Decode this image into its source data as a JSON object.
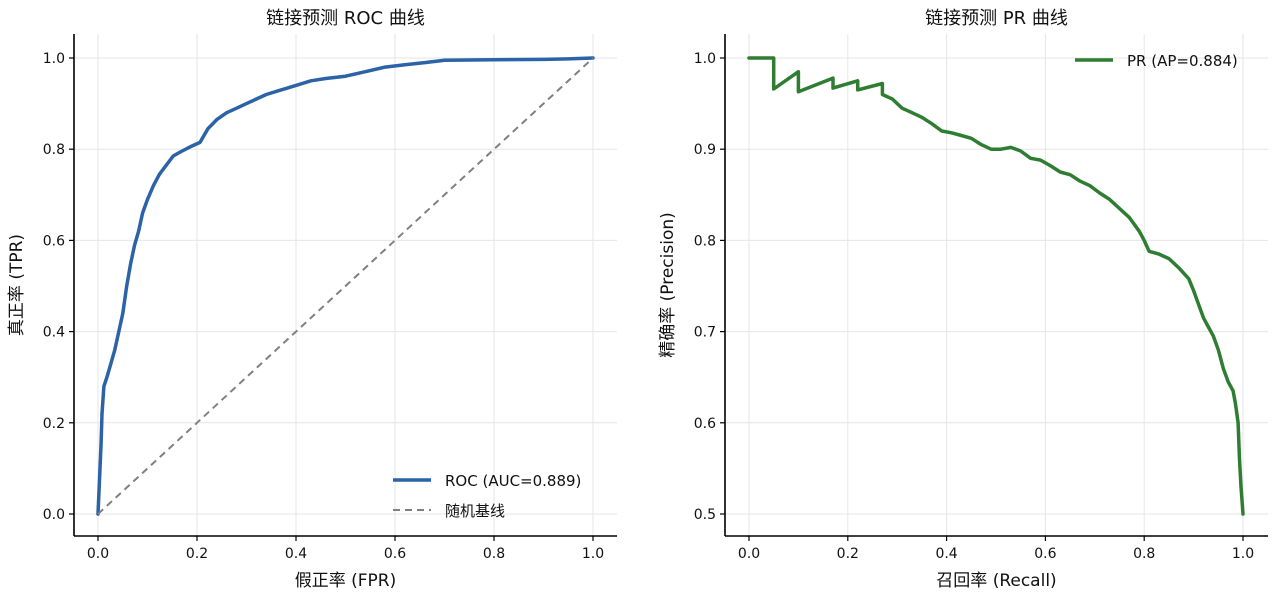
{
  "chart_data": [
    {
      "type": "line",
      "title": "链接预测 ROC 曲线",
      "xlabel": "假正率 (FPR)",
      "ylabel": "真正率 (TPR)",
      "xlim": [
        0.0,
        1.0
      ],
      "ylim": [
        0.0,
        1.0
      ],
      "xticks": [
        "0.0",
        "0.2",
        "0.4",
        "0.6",
        "0.8",
        "1.0"
      ],
      "yticks": [
        "0.0",
        "0.2",
        "0.4",
        "0.6",
        "0.8",
        "1.0"
      ],
      "grid": true,
      "legend": "lower-right",
      "series": [
        {
          "name": "ROC (AUC=0.889)",
          "color": "#2b63a6",
          "style": "solid",
          "x": [
            0.0,
            0.002,
            0.004,
            0.006,
            0.008,
            0.012,
            0.018,
            0.026,
            0.034,
            0.042,
            0.05,
            0.058,
            0.066,
            0.074,
            0.082,
            0.09,
            0.1,
            0.112,
            0.124,
            0.138,
            0.152,
            0.168,
            0.186,
            0.206,
            0.222,
            0.24,
            0.26,
            0.28,
            0.3,
            0.32,
            0.34,
            0.37,
            0.4,
            0.43,
            0.46,
            0.5,
            0.54,
            0.58,
            0.62,
            0.66,
            0.7,
            0.8,
            0.9,
            0.95,
            1.0
          ],
          "y": [
            0.0,
            0.05,
            0.1,
            0.15,
            0.22,
            0.28,
            0.3,
            0.33,
            0.36,
            0.4,
            0.44,
            0.5,
            0.55,
            0.59,
            0.62,
            0.66,
            0.69,
            0.72,
            0.745,
            0.765,
            0.785,
            0.795,
            0.805,
            0.815,
            0.845,
            0.865,
            0.88,
            0.89,
            0.9,
            0.91,
            0.92,
            0.93,
            0.94,
            0.95,
            0.955,
            0.96,
            0.97,
            0.98,
            0.985,
            0.99,
            0.995,
            0.996,
            0.997,
            0.998,
            1.0
          ]
        },
        {
          "name": "随机基线",
          "color": "#808080",
          "style": "dashed",
          "x": [
            0.0,
            1.0
          ],
          "y": [
            0.0,
            1.0
          ]
        }
      ]
    },
    {
      "type": "line",
      "title": "链接预测 PR 曲线",
      "xlabel": "召回率 (Recall)",
      "ylabel": "精确率 (Precision)",
      "xlim": [
        0.0,
        1.0
      ],
      "ylim": [
        0.5,
        1.0
      ],
      "xticks": [
        "0.0",
        "0.2",
        "0.4",
        "0.6",
        "0.8",
        "1.0"
      ],
      "yticks": [
        "0.5",
        "0.6",
        "0.7",
        "0.8",
        "0.9",
        "1.0"
      ],
      "grid": true,
      "legend": "upper-right",
      "series": [
        {
          "name": "PR (AP=0.884)",
          "color": "#2e7d32",
          "style": "solid",
          "x": [
            0.0,
            0.05,
            0.05,
            0.1,
            0.1,
            0.17,
            0.17,
            0.22,
            0.22,
            0.27,
            0.27,
            0.29,
            0.31,
            0.33,
            0.35,
            0.37,
            0.39,
            0.41,
            0.43,
            0.45,
            0.47,
            0.49,
            0.51,
            0.53,
            0.55,
            0.57,
            0.59,
            0.61,
            0.63,
            0.65,
            0.67,
            0.69,
            0.71,
            0.73,
            0.75,
            0.77,
            0.79,
            0.8,
            0.81,
            0.83,
            0.85,
            0.87,
            0.89,
            0.9,
            0.91,
            0.92,
            0.93,
            0.94,
            0.95,
            0.96,
            0.97,
            0.98,
            0.985,
            0.99,
            0.993,
            0.996,
            1.0
          ],
          "y": [
            1.0,
            1.0,
            0.966,
            0.985,
            0.963,
            0.978,
            0.967,
            0.975,
            0.965,
            0.972,
            0.96,
            0.955,
            0.945,
            0.94,
            0.935,
            0.928,
            0.92,
            0.918,
            0.915,
            0.912,
            0.905,
            0.9,
            0.9,
            0.902,
            0.898,
            0.89,
            0.888,
            0.882,
            0.875,
            0.872,
            0.865,
            0.86,
            0.852,
            0.845,
            0.835,
            0.825,
            0.81,
            0.8,
            0.788,
            0.785,
            0.78,
            0.77,
            0.758,
            0.745,
            0.73,
            0.715,
            0.705,
            0.695,
            0.68,
            0.66,
            0.645,
            0.635,
            0.62,
            0.6,
            0.56,
            0.53,
            0.5
          ]
        }
      ]
    }
  ]
}
